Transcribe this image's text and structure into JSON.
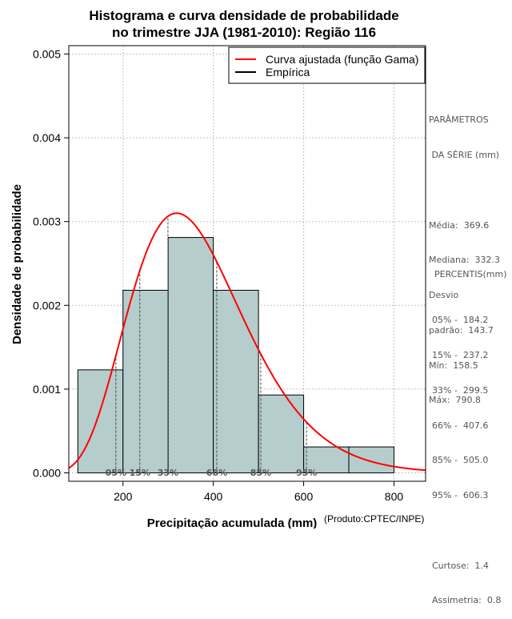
{
  "chart_data": {
    "type": "histogram",
    "title": [
      "Histograma e curva densidade de probabilidade",
      "no trimestre JJA (1981-2010): Região 116"
    ],
    "xlabel": "Precipitação acumulada (mm)",
    "ylabel": "Densidade de probabilidade",
    "xlim": [
      80,
      870
    ],
    "ylim": [
      -0.0001,
      0.0051
    ],
    "x_ticks": [
      200,
      400,
      600,
      800
    ],
    "x_tick_labels": [
      "200",
      "400",
      "600",
      "800"
    ],
    "y_ticks": [
      0,
      0.001,
      0.002,
      0.003,
      0.004,
      0.005
    ],
    "y_tick_labels": [
      "0.000",
      "0.001",
      "0.002",
      "0.003",
      "0.004",
      "0.005"
    ],
    "grid": true,
    "bins": [
      {
        "x0": 100,
        "x1": 200,
        "density": 0.00123
      },
      {
        "x0": 200,
        "x1": 300,
        "density": 0.00218
      },
      {
        "x0": 300,
        "x1": 400,
        "density": 0.00281
      },
      {
        "x0": 400,
        "x1": 500,
        "density": 0.00218
      },
      {
        "x0": 500,
        "x1": 600,
        "density": 0.00093
      },
      {
        "x0": 600,
        "x1": 700,
        "density": 0.00031
      },
      {
        "x0": 700,
        "x1": 800,
        "density": 0.00031
      }
    ],
    "bar_color": "#b5cdcc",
    "gamma_fit": {
      "shape": 7.3,
      "scale": 50.6,
      "color": "#ff0000"
    },
    "percentile_lines": [
      {
        "label": "05%",
        "value": 184.2
      },
      {
        "label": "15%",
        "value": 237.2
      },
      {
        "label": "33%",
        "value": 299.5
      },
      {
        "label": "66%",
        "value": 407.6
      },
      {
        "label": "85%",
        "value": 505.0
      },
      {
        "label": "95%",
        "value": 606.3
      }
    ],
    "legend": [
      {
        "label": "Curva ajustada (função Gama)",
        "color": "#ff0000"
      },
      {
        "label": "Empírica",
        "color": "#000000"
      }
    ],
    "legend_position": "top-right"
  },
  "parametros": {
    "heading": [
      "PARÂMETROS",
      " DA SÉRIE (mm)"
    ],
    "lines": [
      "Média:  369.6",
      "Mediana:  332.3",
      "Desvio",
      "padrão:  143.7",
      "Mín:  158.5",
      "Máx:  790.8"
    ]
  },
  "percentis": {
    "heading": "PERCENTIS(mm)",
    "lines": [
      "05% -  184.2",
      "15% -  237.2",
      "33% -  299.5",
      "66% -  407.6",
      "85% -  505.0",
      "95% -  606.3"
    ],
    "stats": [
      "Curtose:  1.4",
      "Assimetria:  0.8"
    ]
  },
  "credit": "(Produto:CPTEC/INPE)"
}
